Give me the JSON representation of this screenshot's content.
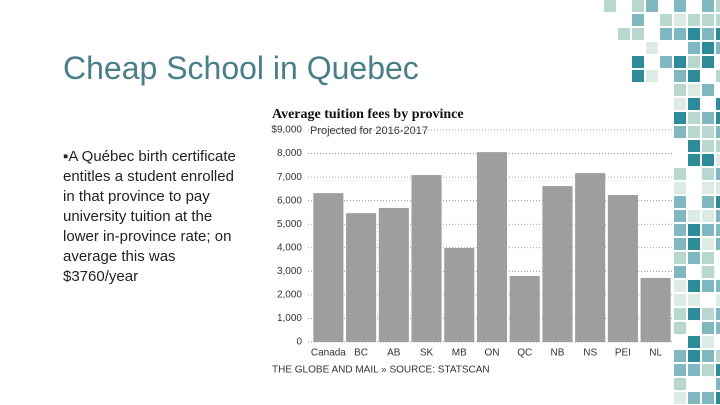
{
  "slide": {
    "title": "Cheap School in Quebec",
    "bullet": "▪A Québec birth certificate entitles a student enrolled in that province to pay university tuition at the lower in-province rate; on average this was $3760/year"
  },
  "chart_data": {
    "type": "bar",
    "title": "Average tuition fees by province",
    "subtitle": "Projected for 2016-2017",
    "source": "THE GLOBE AND MAIL » SOURCE: STATSCAN",
    "categories": [
      "Canada",
      "BC",
      "AB",
      "SK",
      "MB",
      "ON",
      "QC",
      "NB",
      "NS",
      "PEI",
      "NL"
    ],
    "values": [
      6320,
      5470,
      5690,
      7090,
      3990,
      8060,
      2800,
      6620,
      7170,
      6240,
      2720
    ],
    "color": "#9e9e9e",
    "ylim": [
      0,
      9000
    ],
    "yticks": [
      0,
      {
        "value": 1000,
        "label": "1,000"
      },
      {
        "value": 2000,
        "label": "2,000"
      },
      {
        "value": 3000,
        "label": "3,000"
      },
      {
        "value": 4000,
        "label": "4,000"
      },
      {
        "value": 5000,
        "label": "5,000"
      },
      {
        "value": 6000,
        "label": "6,000"
      },
      {
        "value": 7000,
        "label": "7,000"
      },
      {
        "value": 8000,
        "label": "8,000"
      },
      {
        "value": 9000,
        "label": "$9,000"
      }
    ],
    "grid": true
  }
}
